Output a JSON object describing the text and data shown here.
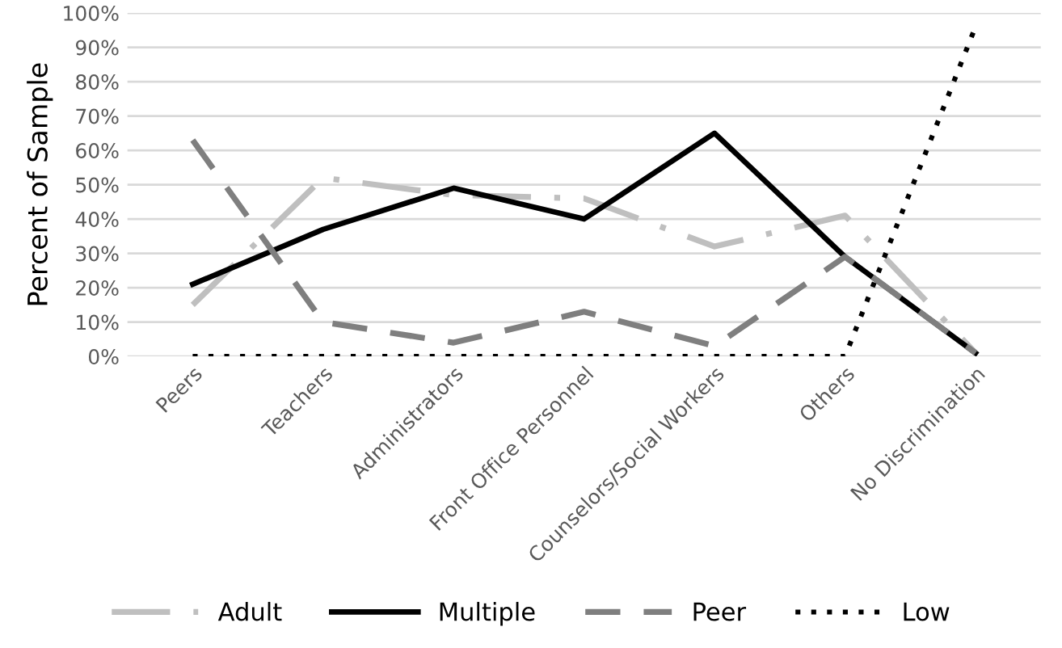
{
  "chart_data": {
    "type": "line",
    "ylabel": "Percent of Sample",
    "categories": [
      "Peers",
      "Teachers",
      "Administrators",
      "Front Office Personnel",
      "Counselors/Social Workers",
      "Others",
      "No Discrimination"
    ],
    "series": [
      {
        "name": "Adult",
        "color": "#bfbfbf",
        "line_style": "dashdot",
        "values": [
          15,
          52,
          47,
          46,
          32,
          41,
          1
        ]
      },
      {
        "name": "Multiple",
        "color": "#000000",
        "line_style": "solid",
        "values": [
          21,
          37,
          49,
          40,
          65,
          29,
          1
        ]
      },
      {
        "name": "Peer",
        "color": "#7f7f7f",
        "line_style": "dashed",
        "values": [
          63,
          10,
          4,
          13,
          3,
          29,
          1
        ]
      },
      {
        "name": "Low",
        "color": "#000000",
        "line_style": "dotted",
        "values": [
          0,
          0,
          0,
          0,
          0,
          0,
          96
        ]
      }
    ],
    "ylim": [
      0,
      100
    ],
    "yticks": [
      {
        "value": 0,
        "label": "0%"
      },
      {
        "value": 10,
        "label": "10%"
      },
      {
        "value": 20,
        "label": "20%"
      },
      {
        "value": 30,
        "label": "30%"
      },
      {
        "value": 40,
        "label": "40%"
      },
      {
        "value": 50,
        "label": "50%"
      },
      {
        "value": 60,
        "label": "60%"
      },
      {
        "value": 70,
        "label": "70%"
      },
      {
        "value": 80,
        "label": "80%"
      },
      {
        "value": 90,
        "label": "90%"
      },
      {
        "value": 100,
        "label": "100%"
      }
    ],
    "grid": "y",
    "legend": "bottom",
    "marker": "none"
  }
}
